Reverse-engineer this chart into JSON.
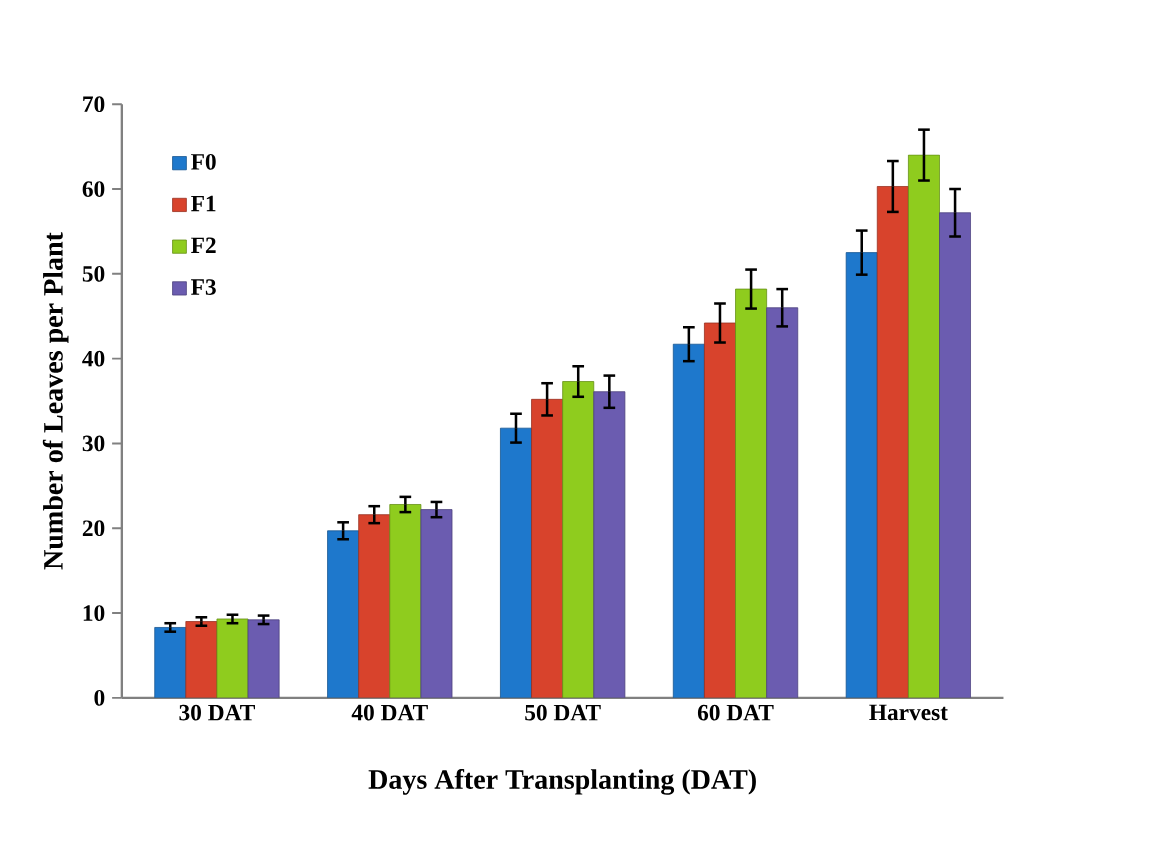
{
  "chart_data": {
    "type": "bar",
    "xlabel": "Days After Transplanting (DAT)",
    "ylabel": "Number of Leaves per Plant",
    "categories": [
      "30 DAT",
      "40 DAT",
      "50 DAT",
      "60 DAT",
      "Harvest"
    ],
    "series": [
      {
        "name": "F0",
        "color": "#1e78cc",
        "values": [
          8.3,
          19.7,
          31.8,
          41.7,
          52.5
        ],
        "errors": [
          0.5,
          1.0,
          1.7,
          2.0,
          2.6
        ]
      },
      {
        "name": "F1",
        "color": "#d8432c",
        "values": [
          9.0,
          21.6,
          35.2,
          44.2,
          60.3
        ],
        "errors": [
          0.5,
          1.0,
          1.9,
          2.3,
          3.0
        ]
      },
      {
        "name": "F2",
        "color": "#8fcc1e",
        "values": [
          9.3,
          22.8,
          37.3,
          48.2,
          64.0
        ],
        "errors": [
          0.5,
          0.9,
          1.8,
          2.3,
          3.0
        ]
      },
      {
        "name": "F3",
        "color": "#6b5cb0",
        "values": [
          9.2,
          22.2,
          36.1,
          46.0,
          57.2
        ],
        "errors": [
          0.5,
          0.9,
          1.9,
          2.2,
          2.8
        ]
      }
    ],
    "ylim": [
      0,
      70
    ],
    "yticks": [
      0,
      10,
      20,
      30,
      40,
      50,
      60,
      70
    ],
    "grid": false,
    "legend": "top left"
  }
}
